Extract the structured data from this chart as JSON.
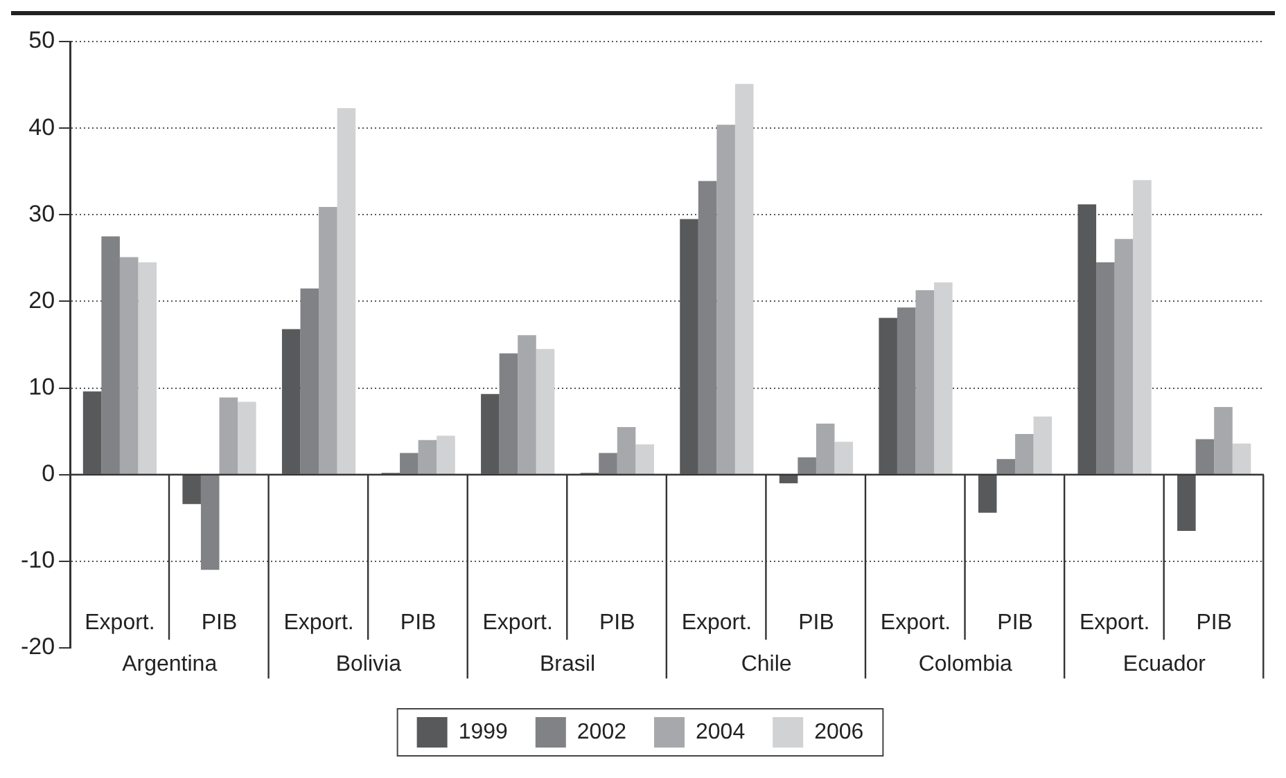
{
  "chart_data": {
    "type": "bar",
    "categories": [
      "Export.",
      "PIB",
      "Export.",
      "PIB",
      "Export.",
      "PIB",
      "Export.",
      "PIB",
      "Export.",
      "PIB",
      "Export.",
      "PIB"
    ],
    "series": [
      {
        "name": "1999",
        "color": "#58595b",
        "values": [
          9.6,
          -3.4,
          16.8,
          0.2,
          9.3,
          0.2,
          29.5,
          -1.0,
          18.1,
          -4.4,
          31.2,
          -6.5
        ]
      },
      {
        "name": "2002",
        "color": "#818285",
        "values": [
          27.5,
          -11.0,
          21.5,
          2.5,
          14.0,
          2.5,
          33.9,
          2.0,
          19.3,
          1.8,
          24.5,
          4.1
        ]
      },
      {
        "name": "2004",
        "color": "#a7a8ab",
        "values": [
          25.1,
          8.9,
          30.9,
          4.0,
          16.1,
          5.5,
          40.4,
          5.9,
          21.3,
          4.7,
          27.2,
          7.8
        ]
      },
      {
        "name": "2006",
        "color": "#d1d2d4",
        "values": [
          24.5,
          8.4,
          42.3,
          4.5,
          14.5,
          3.5,
          45.1,
          3.8,
          22.2,
          6.7,
          34.0,
          3.6
        ]
      }
    ],
    "annotations": [
      "Argentina",
      "Bolivia",
      "Brasil",
      "Chile",
      "Colombia",
      "Ecuador"
    ],
    "ylim": [
      -20,
      50
    ],
    "yticks": [
      -20,
      -10,
      0,
      10,
      20,
      30,
      40,
      50
    ],
    "grid": "y",
    "legend": "bottom"
  }
}
